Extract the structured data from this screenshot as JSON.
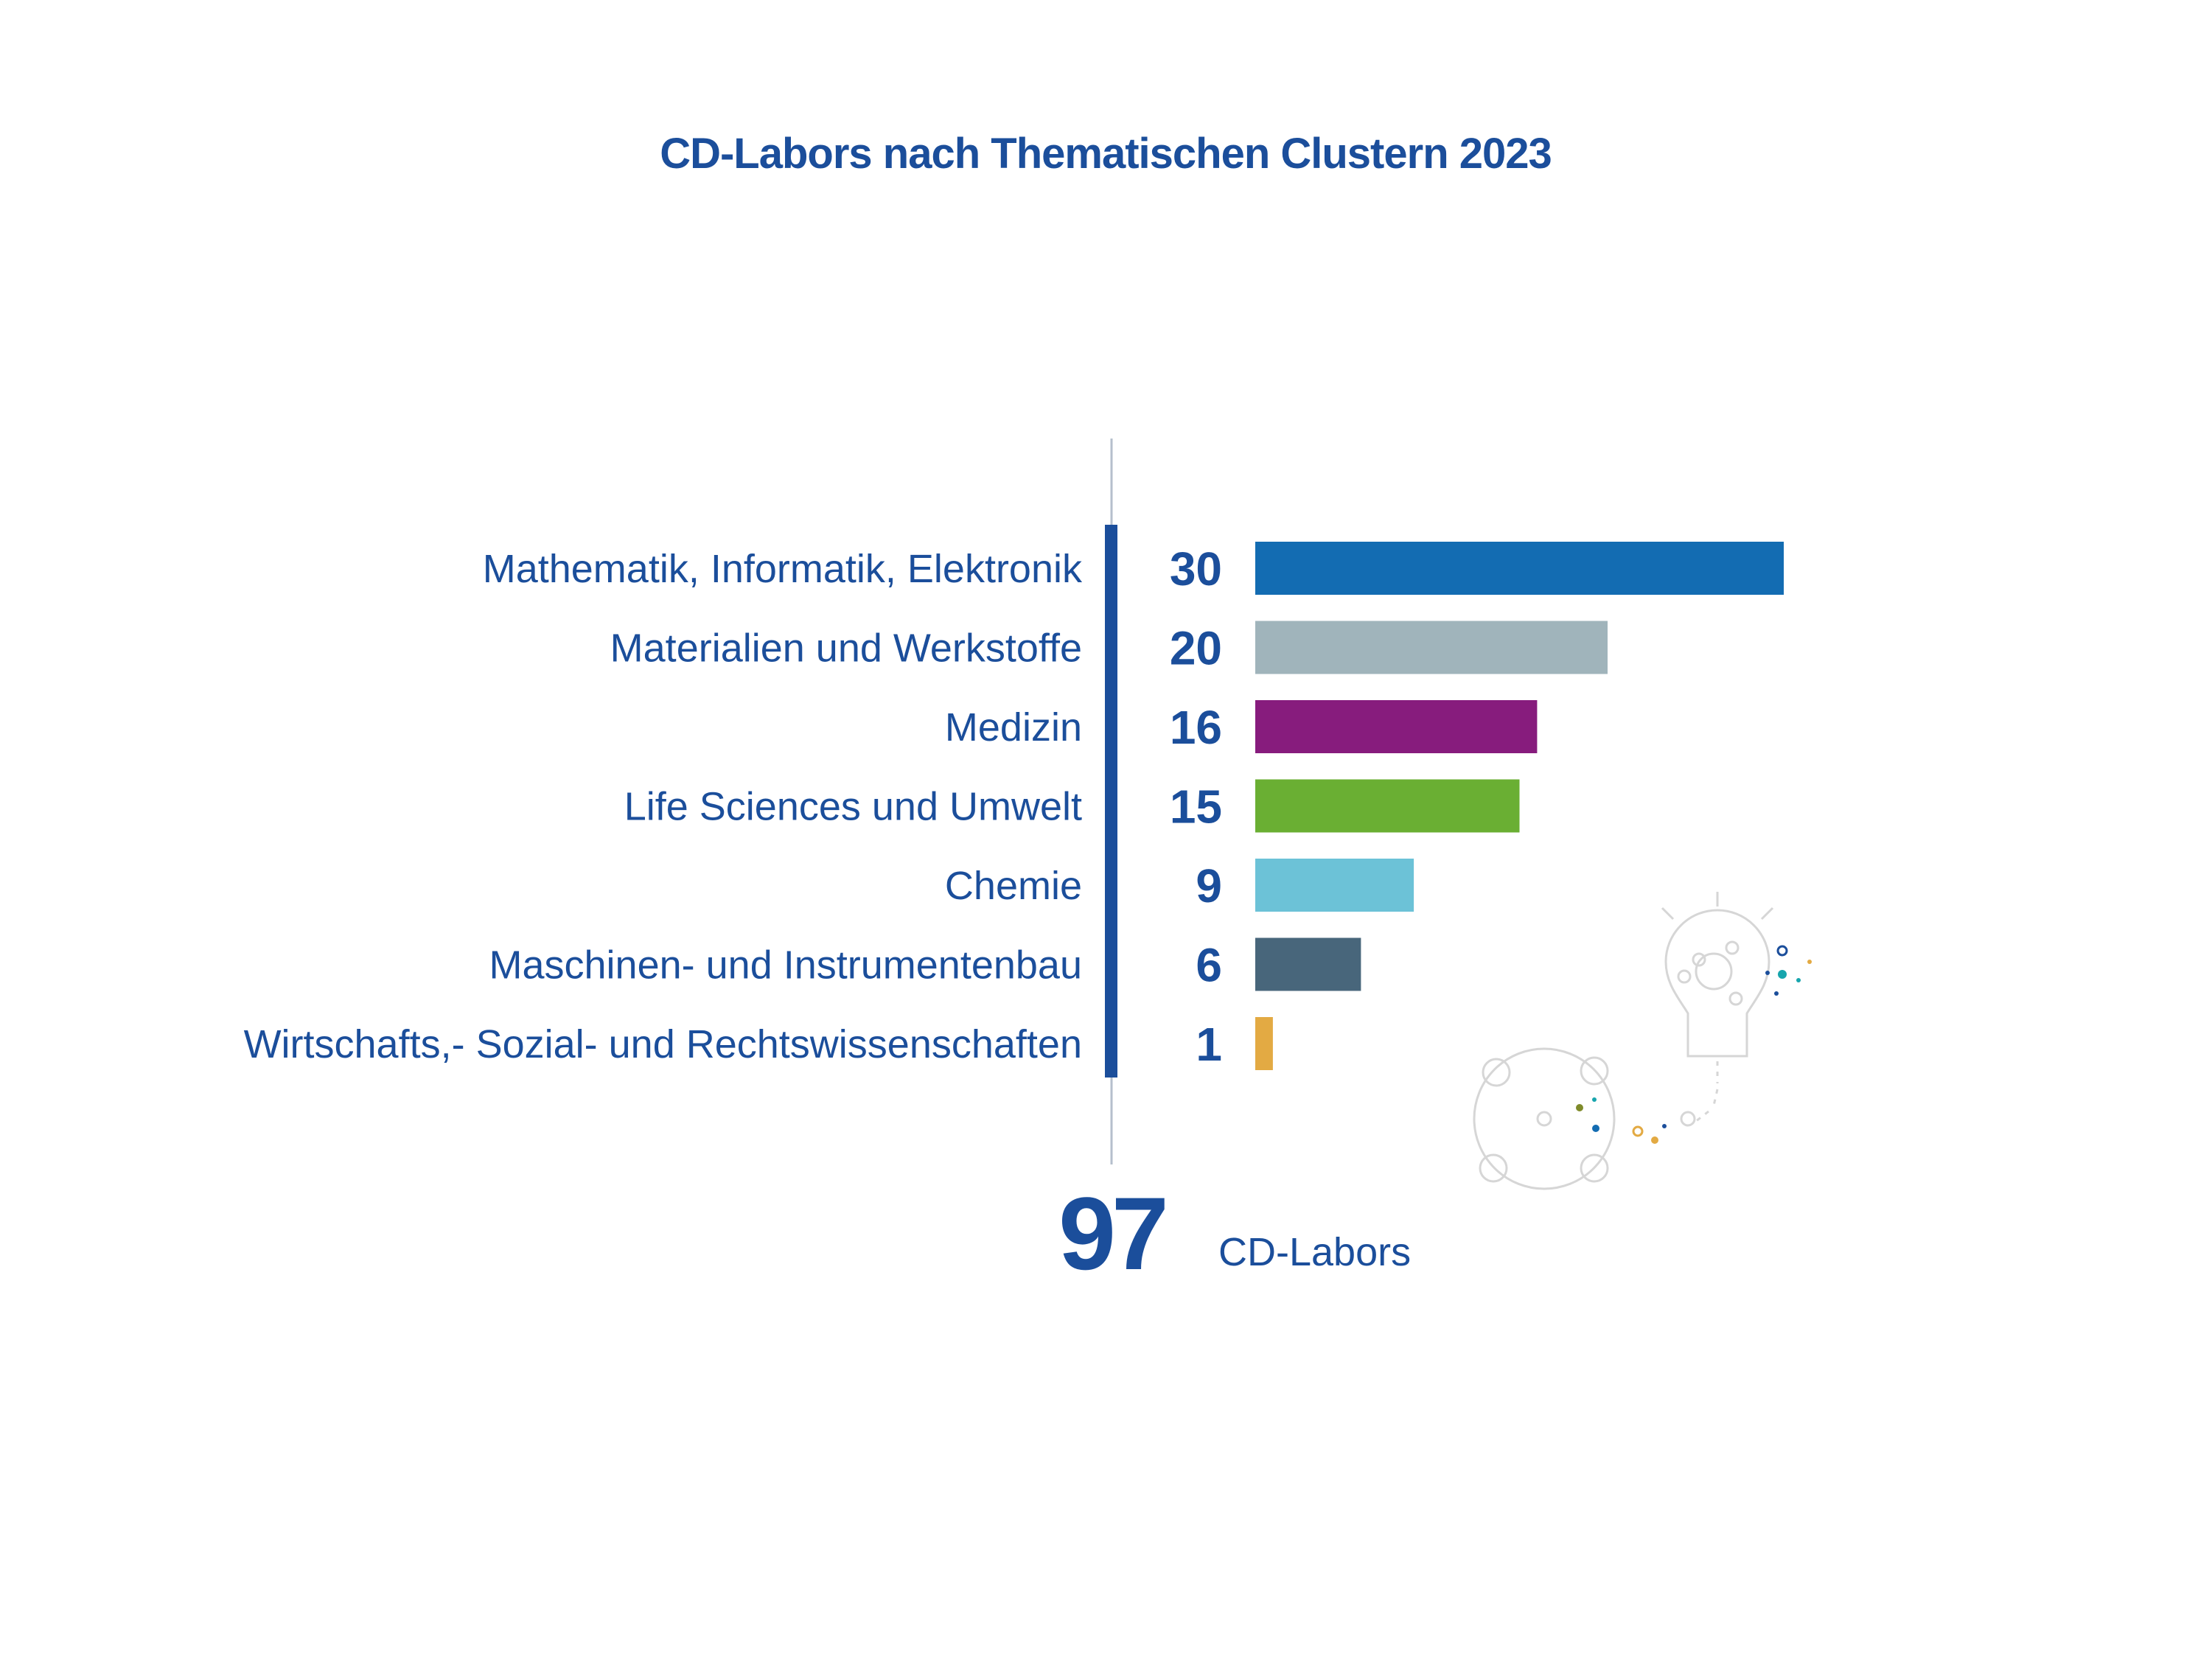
{
  "chart_data": {
    "type": "bar",
    "orientation": "horizontal",
    "title": "CD-Labors nach Thematischen Clustern 2023",
    "categories": [
      "Mathematik, Informatik, Elektronik",
      "Materialien und Werkstoffe",
      "Medizin",
      "Life Sciences und Umwelt",
      "Chemie",
      "Maschinen- und Instrumentenbau",
      "Wirtschafts,- Sozial- und Rechtswissenschaften"
    ],
    "values": [
      30,
      20,
      16,
      15,
      9,
      6,
      1
    ],
    "colors": [
      "#136cb2",
      "#a0b4bb",
      "#871c7d",
      "#6aaf33",
      "#6cc2d7",
      "#48667b",
      "#e3aa43"
    ],
    "total": {
      "value": "97",
      "unit": "CD-Labors"
    },
    "xlim": [
      0,
      30
    ],
    "grid": false,
    "legend": "none"
  },
  "colors": {
    "text": "#1b4e9b",
    "axis_bar": "#1b4e9b",
    "thin_axis": "#b5bfcc"
  }
}
